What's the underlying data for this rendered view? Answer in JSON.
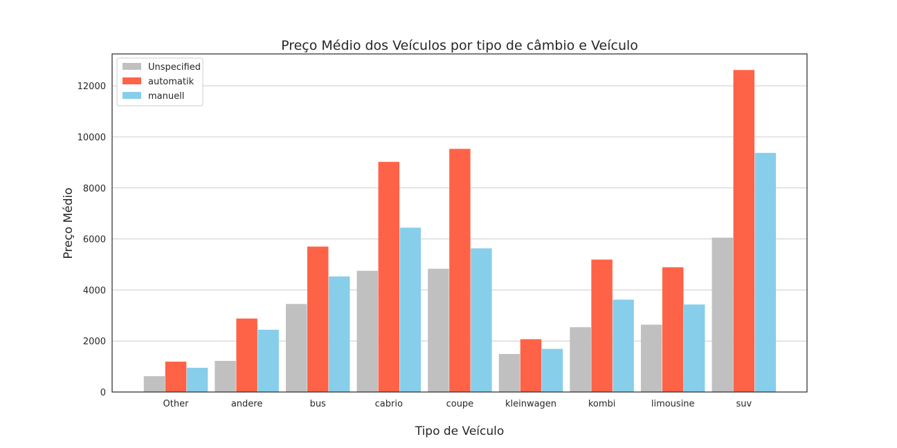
{
  "chart_data": {
    "type": "bar",
    "title": "Preço Médio dos Veículos por tipo de câmbio e Veículo",
    "xlabel": "Tipo de Veículo",
    "ylabel": "Preço Médio",
    "categories": [
      "Other",
      "andere",
      "bus",
      "cabrio",
      "coupe",
      "kleinwagen",
      "kombi",
      "limousine",
      "suv"
    ],
    "series": [
      {
        "name": "Unspecified",
        "color": "#c0c0c0",
        "values": [
          620,
          1220,
          3450,
          4750,
          4830,
          1490,
          2540,
          2640,
          6050
        ]
      },
      {
        "name": "automatik",
        "color": "#ff6347",
        "values": [
          1190,
          2880,
          5700,
          9020,
          9530,
          2070,
          5190,
          4890,
          12620
        ]
      },
      {
        "name": "manuell",
        "color": "#87ceeb",
        "values": [
          950,
          2440,
          4530,
          6440,
          5630,
          1690,
          3620,
          3430,
          9370
        ]
      }
    ],
    "yticks": [
      0,
      2000,
      4000,
      6000,
      8000,
      10000,
      12000
    ],
    "ylim": [
      0,
      13250
    ],
    "grid": "horizontal",
    "legend_position": "upper-left"
  }
}
